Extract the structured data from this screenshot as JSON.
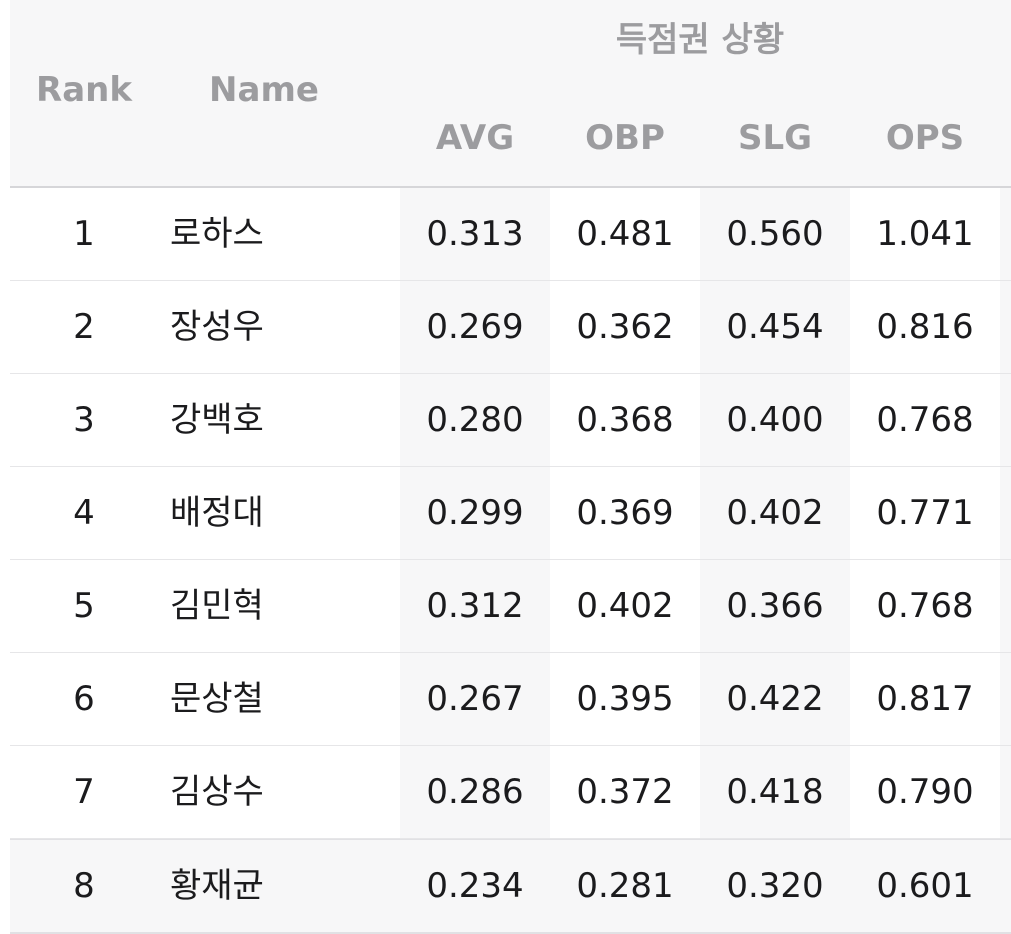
{
  "header": {
    "group_title": "득점권 상황",
    "rank": "Rank",
    "name": "Name",
    "avg": "AVG",
    "obp": "OBP",
    "slg": "SLG",
    "ops": "OPS"
  },
  "rows": [
    {
      "rank": "1",
      "name": "로하스",
      "avg": "0.313",
      "obp": "0.481",
      "slg": "0.560",
      "ops": "1.041"
    },
    {
      "rank": "2",
      "name": "장성우",
      "avg": "0.269",
      "obp": "0.362",
      "slg": "0.454",
      "ops": "0.816"
    },
    {
      "rank": "3",
      "name": "강백호",
      "avg": "0.280",
      "obp": "0.368",
      "slg": "0.400",
      "ops": "0.768"
    },
    {
      "rank": "4",
      "name": "배정대",
      "avg": "0.299",
      "obp": "0.369",
      "slg": "0.402",
      "ops": "0.771"
    },
    {
      "rank": "5",
      "name": "김민혁",
      "avg": "0.312",
      "obp": "0.402",
      "slg": "0.366",
      "ops": "0.768"
    },
    {
      "rank": "6",
      "name": "문상철",
      "avg": "0.267",
      "obp": "0.395",
      "slg": "0.422",
      "ops": "0.817"
    },
    {
      "rank": "7",
      "name": "김상수",
      "avg": "0.286",
      "obp": "0.372",
      "slg": "0.418",
      "ops": "0.790"
    },
    {
      "rank": "8",
      "name": "황재균",
      "avg": "0.234",
      "obp": "0.281",
      "slg": "0.320",
      "ops": "0.601"
    }
  ]
}
